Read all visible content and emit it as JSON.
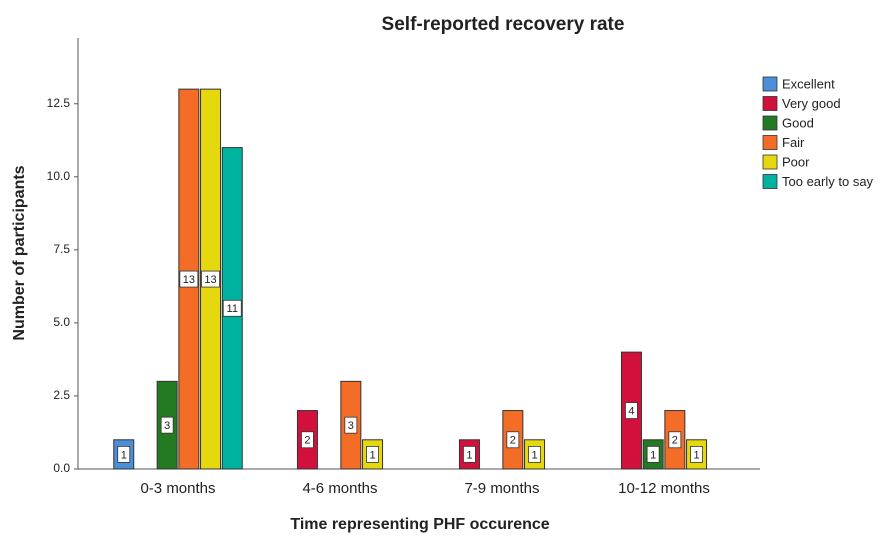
{
  "chart_data": {
    "type": "bar",
    "title": "Self-reported recovery rate",
    "x_label": "Time representing PHF occurence",
    "y_label": "Number of participants",
    "categories": [
      "0-3 months",
      "4-6 months",
      "7-9 months",
      "10-12 months"
    ],
    "series": [
      {
        "name": "Excellent",
        "color": "#4a8fd8",
        "values": [
          1,
          null,
          null,
          null
        ]
      },
      {
        "name": "Very good",
        "color": "#d2103c",
        "values": [
          null,
          2,
          1,
          4
        ]
      },
      {
        "name": "Good",
        "color": "#237a23",
        "values": [
          3,
          null,
          null,
          1
        ]
      },
      {
        "name": "Fair",
        "color": "#f46d27",
        "values": [
          13,
          3,
          2,
          2
        ]
      },
      {
        "name": "Poor",
        "color": "#e6d80f",
        "values": [
          13,
          1,
          1,
          1
        ]
      },
      {
        "name": "Too early to say",
        "color": "#00b3a0",
        "values": [
          11,
          null,
          null,
          null
        ]
      }
    ],
    "ylim": [
      0,
      14.75
    ],
    "yticks": [
      {
        "value": 0,
        "label": "0.0"
      },
      2.5,
      {
        "value": 5,
        "label": "5.0"
      },
      7.5,
      {
        "value": 10,
        "label": "10.0"
      },
      12.5
    ],
    "legend": "right"
  }
}
